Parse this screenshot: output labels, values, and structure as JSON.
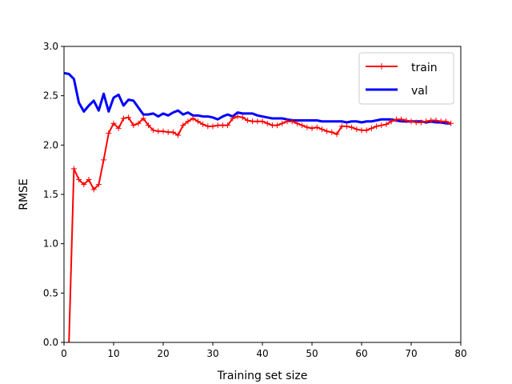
{
  "chart_data": {
    "type": "line",
    "title": "",
    "xlabel": "Training set size",
    "ylabel": "RMSE",
    "xlim": [
      0,
      80
    ],
    "ylim": [
      0,
      3
    ],
    "xticks": [
      "0",
      "10",
      "20",
      "30",
      "40",
      "50",
      "60",
      "70",
      "80"
    ],
    "yticks": [
      "0.0",
      "0.5",
      "1.0",
      "1.5",
      "2.0",
      "2.5",
      "3.0"
    ],
    "grid": false,
    "legend_position": "top-right",
    "series": [
      {
        "name": "train",
        "color": "#ff0000",
        "marker": "+",
        "x": [
          1,
          2,
          3,
          4,
          5,
          6,
          7,
          8,
          9,
          10,
          11,
          12,
          13,
          14,
          15,
          16,
          17,
          18,
          19,
          20,
          21,
          22,
          23,
          24,
          25,
          26,
          27,
          28,
          29,
          30,
          31,
          32,
          33,
          34,
          35,
          36,
          37,
          38,
          39,
          40,
          41,
          42,
          43,
          44,
          45,
          46,
          47,
          48,
          49,
          50,
          51,
          52,
          53,
          54,
          55,
          56,
          57,
          58,
          59,
          60,
          61,
          62,
          63,
          64,
          65,
          66,
          67,
          68,
          69,
          70,
          71,
          72,
          73,
          74,
          75,
          76,
          77,
          78
        ],
        "y": [
          0.0,
          1.76,
          1.65,
          1.6,
          1.65,
          1.55,
          1.6,
          1.85,
          2.12,
          2.22,
          2.17,
          2.27,
          2.28,
          2.2,
          2.22,
          2.27,
          2.2,
          2.15,
          2.14,
          2.14,
          2.13,
          2.13,
          2.1,
          2.2,
          2.24,
          2.27,
          2.24,
          2.21,
          2.19,
          2.19,
          2.2,
          2.2,
          2.2,
          2.27,
          2.29,
          2.28,
          2.25,
          2.24,
          2.24,
          2.24,
          2.22,
          2.2,
          2.2,
          2.22,
          2.24,
          2.24,
          2.22,
          2.2,
          2.18,
          2.17,
          2.18,
          2.16,
          2.14,
          2.13,
          2.11,
          2.19,
          2.19,
          2.18,
          2.16,
          2.15,
          2.15,
          2.17,
          2.19,
          2.2,
          2.21,
          2.24,
          2.26,
          2.26,
          2.25,
          2.24,
          2.23,
          2.23,
          2.24,
          2.25,
          2.25,
          2.24,
          2.24,
          2.22
        ]
      },
      {
        "name": "val",
        "color": "#0000ff",
        "marker": "",
        "x": [
          0,
          1,
          2,
          3,
          4,
          5,
          6,
          7,
          8,
          9,
          10,
          11,
          12,
          13,
          14,
          15,
          16,
          17,
          18,
          19,
          20,
          21,
          22,
          23,
          24,
          25,
          26,
          27,
          28,
          29,
          30,
          31,
          32,
          33,
          34,
          35,
          36,
          37,
          38,
          39,
          40,
          41,
          42,
          43,
          44,
          45,
          46,
          47,
          48,
          49,
          50,
          51,
          52,
          53,
          54,
          55,
          56,
          57,
          58,
          59,
          60,
          61,
          62,
          63,
          64,
          65,
          66,
          67,
          68,
          69,
          70,
          71,
          72,
          73,
          74,
          75,
          76,
          77,
          78
        ],
        "y": [
          2.73,
          2.72,
          2.67,
          2.43,
          2.34,
          2.4,
          2.45,
          2.35,
          2.52,
          2.34,
          2.48,
          2.51,
          2.4,
          2.46,
          2.45,
          2.38,
          2.31,
          2.31,
          2.32,
          2.29,
          2.32,
          2.3,
          2.33,
          2.35,
          2.31,
          2.33,
          2.3,
          2.3,
          2.29,
          2.29,
          2.28,
          2.26,
          2.29,
          2.31,
          2.29,
          2.33,
          2.32,
          2.32,
          2.32,
          2.3,
          2.29,
          2.28,
          2.27,
          2.27,
          2.27,
          2.26,
          2.25,
          2.25,
          2.25,
          2.25,
          2.25,
          2.25,
          2.24,
          2.24,
          2.24,
          2.24,
          2.24,
          2.23,
          2.24,
          2.24,
          2.23,
          2.24,
          2.24,
          2.25,
          2.26,
          2.26,
          2.26,
          2.25,
          2.24,
          2.24,
          2.24,
          2.24,
          2.24,
          2.23,
          2.24,
          2.23,
          2.23,
          2.22,
          2.22
        ]
      }
    ]
  }
}
